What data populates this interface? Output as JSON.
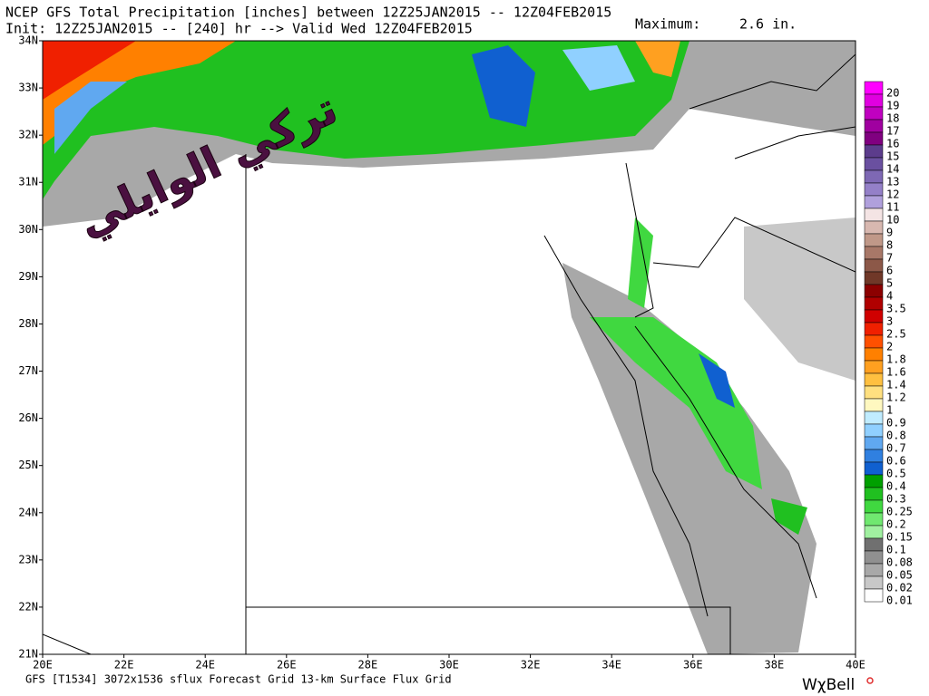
{
  "header": {
    "title": "NCEP GFS Total Precipitation [inches] between 12Z25JAN2015 -- 12Z04FEB2015",
    "subtitle": "Init: 12Z25JAN2015 -- [240] hr --> Valid Wed 12Z04FEB2015",
    "maximum_label": "Maximum:",
    "maximum": "2.6 in."
  },
  "map": {
    "lat_labels": [
      "34N",
      "33N",
      "32N",
      "31N",
      "30N",
      "29N",
      "28N",
      "27N",
      "26N",
      "25N",
      "24N",
      "23N",
      "22N",
      "21N"
    ],
    "lon_labels": [
      "20E",
      "22E",
      "24E",
      "26E",
      "28E",
      "30E",
      "32E",
      "34E",
      "36E",
      "38E",
      "40E"
    ],
    "watermark": "تركي الوايلي"
  },
  "colorbar": {
    "levels": [
      {
        "label": "20",
        "color": "#ff00ff"
      },
      {
        "label": "19",
        "color": "#e000e0"
      },
      {
        "label": "18",
        "color": "#c000c0"
      },
      {
        "label": "17",
        "color": "#a000a0"
      },
      {
        "label": "16",
        "color": "#800080"
      },
      {
        "label": "15",
        "color": "#5c3c8c"
      },
      {
        "label": "14",
        "color": "#6a50a0"
      },
      {
        "label": "13",
        "color": "#7e68b4"
      },
      {
        "label": "12",
        "color": "#9480c8"
      },
      {
        "label": "11",
        "color": "#b0a0dc"
      },
      {
        "label": "10",
        "color": "#f4e4e4"
      },
      {
        "label": "9",
        "color": "#d8b8b0"
      },
      {
        "label": "8",
        "color": "#c09888"
      },
      {
        "label": "7",
        "color": "#a87868"
      },
      {
        "label": "6",
        "color": "#8c5848"
      },
      {
        "label": "5",
        "color": "#703828"
      },
      {
        "label": "4",
        "color": "#8c0000"
      },
      {
        "label": "3.5",
        "color": "#b00000"
      },
      {
        "label": "3",
        "color": "#d00000"
      },
      {
        "label": "2.5",
        "color": "#f02000"
      },
      {
        "label": "2",
        "color": "#ff5000"
      },
      {
        "label": "1.8",
        "color": "#ff8000"
      },
      {
        "label": "1.6",
        "color": "#ffa020"
      },
      {
        "label": "1.4",
        "color": "#ffc040"
      },
      {
        "label": "1.2",
        "color": "#ffe080"
      },
      {
        "label": "1",
        "color": "#fff8c0"
      },
      {
        "label": "0.9",
        "color": "#c0ecff"
      },
      {
        "label": "0.8",
        "color": "#90d0ff"
      },
      {
        "label": "0.7",
        "color": "#60a8f0"
      },
      {
        "label": "0.6",
        "color": "#3080e0"
      },
      {
        "label": "0.5",
        "color": "#1060d0"
      },
      {
        "label": "0.4",
        "color": "#00a000"
      },
      {
        "label": "0.3",
        "color": "#20c020"
      },
      {
        "label": "0.25",
        "color": "#40d840"
      },
      {
        "label": "0.2",
        "color": "#70e870"
      },
      {
        "label": "0.15",
        "color": "#a0f0a0"
      },
      {
        "label": "0.1",
        "color": "#707070"
      },
      {
        "label": "0.08",
        "color": "#909090"
      },
      {
        "label": "0.05",
        "color": "#a8a8a8"
      },
      {
        "label": "0.02",
        "color": "#c8c8c8"
      },
      {
        "label": "0.01",
        "color": "#ffffff"
      }
    ]
  },
  "footer": {
    "text": "GFS [T1534] 3072x1536 sflux Forecast Grid 13-km Surface Flux Grid",
    "brand": "WχBell"
  }
}
